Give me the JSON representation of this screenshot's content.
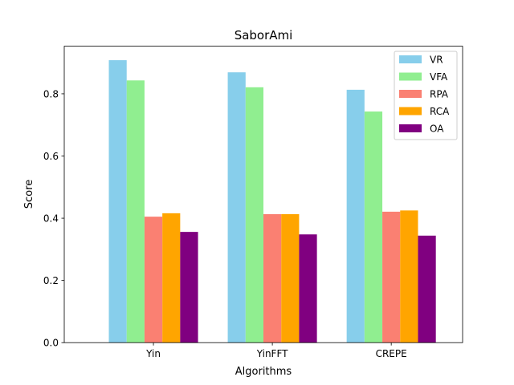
{
  "chart_data": {
    "type": "bar",
    "title": "SaborAmi",
    "xlabel": "Algorithms",
    "ylabel": "Score",
    "categories": [
      "Yin",
      "YinFFT",
      "CREPE"
    ],
    "series": [
      {
        "name": "VR",
        "color": "#87ceeb",
        "values": [
          0.908,
          0.869,
          0.813
        ]
      },
      {
        "name": "VFA",
        "color": "#90ee90",
        "values": [
          0.843,
          0.821,
          0.743
        ]
      },
      {
        "name": "RPA",
        "color": "#fa8072",
        "values": [
          0.405,
          0.413,
          0.421
        ]
      },
      {
        "name": "RCA",
        "color": "#ffa500",
        "values": [
          0.416,
          0.413,
          0.425
        ]
      },
      {
        "name": "OA",
        "color": "#800080",
        "values": [
          0.356,
          0.348,
          0.344
        ]
      }
    ],
    "ylim": [
      0,
      0.953
    ],
    "yticks": [
      0.0,
      0.2,
      0.4,
      0.6,
      0.8
    ],
    "ytick_labels": [
      "0.0",
      "0.2",
      "0.4",
      "0.6",
      "0.8"
    ],
    "legend_position": "upper right",
    "grid": false
  }
}
